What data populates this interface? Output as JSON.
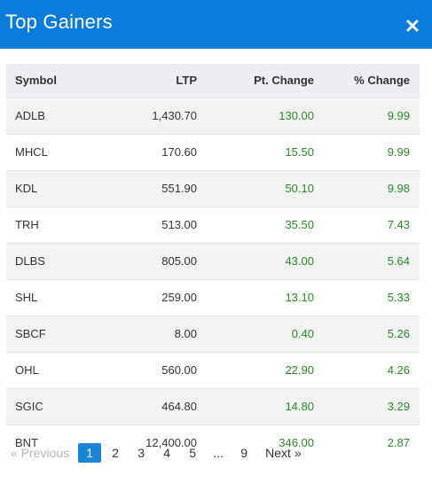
{
  "header": {
    "title": "Top Gainers",
    "background_color": "#0a7bd8",
    "close_icon": "close-icon"
  },
  "table": {
    "columns": [
      "Symbol",
      "LTP",
      "Pt. Change",
      "% Change"
    ],
    "rows": [
      {
        "symbol": "ADLB",
        "ltp": "1,430.70",
        "pt_change": "130.00",
        "pct_change": "9.99"
      },
      {
        "symbol": "MHCL",
        "ltp": "170.60",
        "pt_change": "15.50",
        "pct_change": "9.99"
      },
      {
        "symbol": "KDL",
        "ltp": "551.90",
        "pt_change": "50.10",
        "pct_change": "9.98"
      },
      {
        "symbol": "TRH",
        "ltp": "513.00",
        "pt_change": "35.50",
        "pct_change": "7.43"
      },
      {
        "symbol": "DLBS",
        "ltp": "805.00",
        "pt_change": "43.00",
        "pct_change": "5.64"
      },
      {
        "symbol": "SHL",
        "ltp": "259.00",
        "pt_change": "13.10",
        "pct_change": "5.33"
      },
      {
        "symbol": "SBCF",
        "ltp": "8.00",
        "pt_change": "0.40",
        "pct_change": "5.26"
      },
      {
        "symbol": "OHL",
        "ltp": "560.00",
        "pt_change": "22.90",
        "pct_change": "4.26"
      },
      {
        "symbol": "SGIC",
        "ltp": "464.80",
        "pt_change": "14.80",
        "pct_change": "3.29"
      },
      {
        "symbol": "BNT",
        "ltp": "12,400.00",
        "pt_change": "346.00",
        "pct_change": "2.87"
      }
    ],
    "positive_color": "#2a8a2a"
  },
  "pagination": {
    "previous_label": "«  Previous",
    "pages": [
      "1",
      "2",
      "3",
      "4",
      "5"
    ],
    "ellipsis": "...",
    "last_page": "9",
    "next_label": "Next  »",
    "current_page": "1",
    "active_color": "#1a86d9"
  }
}
